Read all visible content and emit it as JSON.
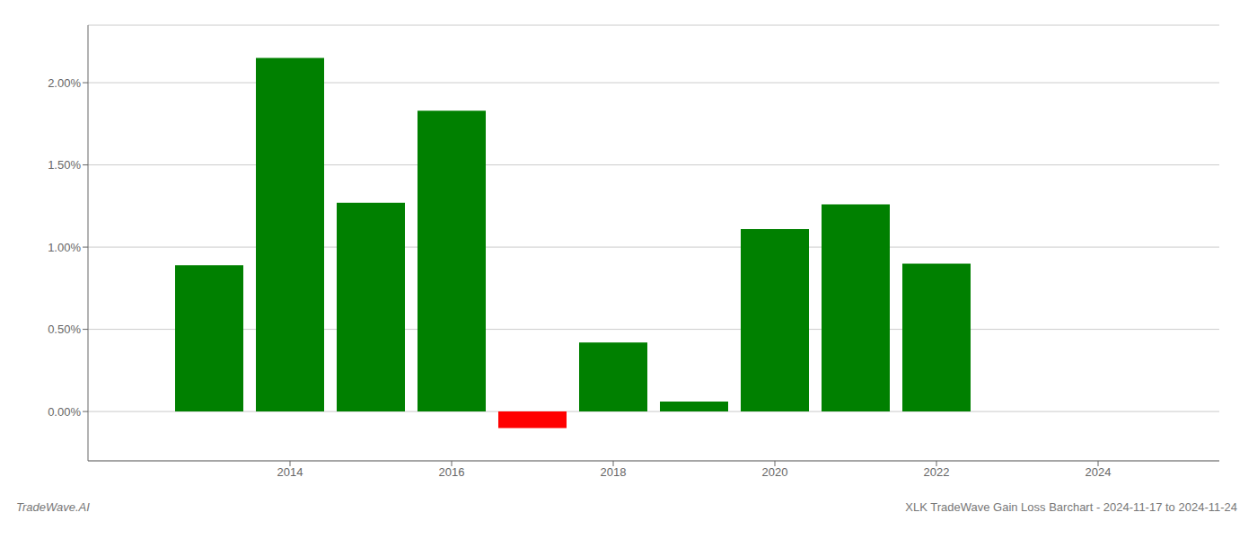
{
  "chart_data": {
    "type": "bar",
    "x": [
      2013,
      2014,
      2015,
      2016,
      2017,
      2018,
      2019,
      2020,
      2021,
      2022
    ],
    "values": [
      0.0089,
      0.0215,
      0.0127,
      0.0183,
      -0.001,
      0.0042,
      0.0006,
      0.0111,
      0.0126,
      0.009
    ],
    "colors": [
      "#008000",
      "#008000",
      "#008000",
      "#008000",
      "#ff0000",
      "#008000",
      "#008000",
      "#008000",
      "#008000",
      "#008000"
    ],
    "xlim": [
      2011.5,
      2025.5
    ],
    "xticks": [
      2014,
      2016,
      2018,
      2020,
      2022,
      2024
    ],
    "ylim": [
      -0.003,
      0.0235
    ],
    "yticks": [
      {
        "value": 0.0,
        "label": "0.00%"
      },
      {
        "value": 0.005,
        "label": "0.50%"
      },
      {
        "value": 0.01,
        "label": "1.00%"
      },
      {
        "value": 0.015,
        "label": "1.50%"
      },
      {
        "value": 0.02,
        "label": "2.00%"
      }
    ],
    "grid": true,
    "annotations": [
      "TradeWave.AI",
      "XLK TradeWave Gain Loss Barchart - 2024-11-17 to 2024-11-24"
    ]
  }
}
